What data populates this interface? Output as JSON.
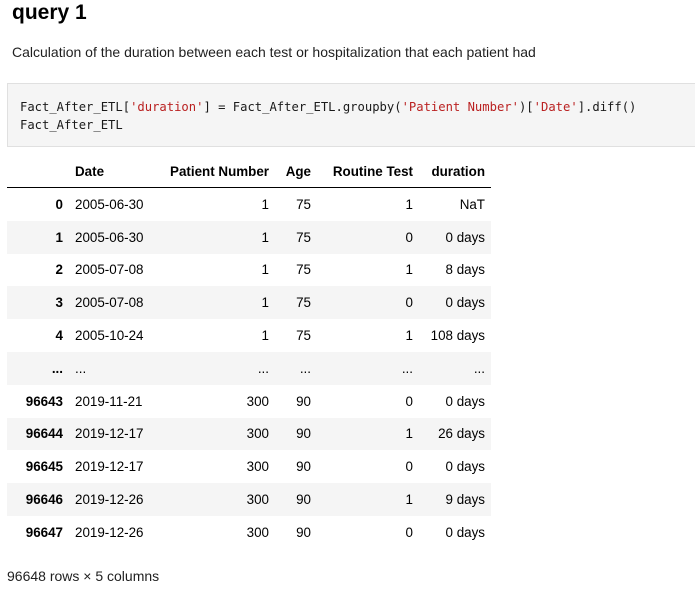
{
  "heading": "query 1",
  "description": "Calculation of the duration between each test or hospitalization that each patient had",
  "code": {
    "line1": {
      "p1": "Fact_After_ETL[",
      "s1": "'duration'",
      "p2": "] = Fact_After_ETL.groupby(",
      "s2": "'Patient Number'",
      "p3": ")[",
      "s3": "'Date'",
      "p4": "].diff()"
    },
    "line2": "Fact_After_ETL"
  },
  "table": {
    "columns": [
      "",
      "Date",
      "Patient Number",
      "Age",
      "Routine Test",
      "duration"
    ],
    "rows": [
      [
        "0",
        "2005-06-30",
        "1",
        "75",
        "1",
        "NaT"
      ],
      [
        "1",
        "2005-06-30",
        "1",
        "75",
        "0",
        "0 days"
      ],
      [
        "2",
        "2005-07-08",
        "1",
        "75",
        "1",
        "8 days"
      ],
      [
        "3",
        "2005-07-08",
        "1",
        "75",
        "0",
        "0 days"
      ],
      [
        "4",
        "2005-10-24",
        "1",
        "75",
        "1",
        "108 days"
      ],
      [
        "...",
        "...",
        "...",
        "...",
        "...",
        "..."
      ],
      [
        "96643",
        "2019-11-21",
        "300",
        "90",
        "0",
        "0 days"
      ],
      [
        "96644",
        "2019-12-17",
        "300",
        "90",
        "1",
        "26 days"
      ],
      [
        "96645",
        "2019-12-17",
        "300",
        "90",
        "0",
        "0 days"
      ],
      [
        "96646",
        "2019-12-26",
        "300",
        "90",
        "1",
        "9 days"
      ],
      [
        "96647",
        "2019-12-26",
        "300",
        "90",
        "0",
        "0 days"
      ]
    ]
  },
  "footer": "96648 rows × 5 columns"
}
